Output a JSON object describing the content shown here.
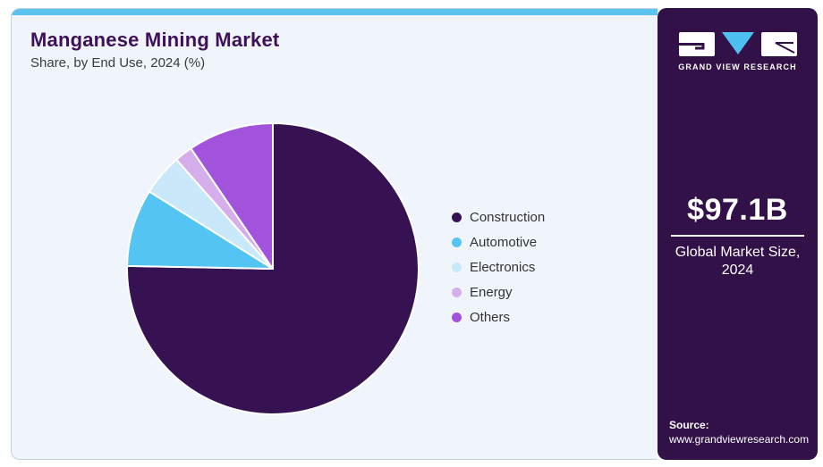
{
  "header": {
    "title": "Manganese Mining Market",
    "subtitle": "Share, by End Use, 2024 (%)"
  },
  "chart_data": {
    "type": "pie",
    "title": "Manganese Mining Market",
    "subtitle": "Share, by End Use, 2024 (%)",
    "unit": "%",
    "start_angle_deg": 0,
    "direction": "clockwise",
    "legend_position": "right",
    "slices": [
      {
        "label": "Construction",
        "value": 75.3,
        "color": "#371253"
      },
      {
        "label": "Automotive",
        "value": 8.6,
        "color": "#54C4F2"
      },
      {
        "label": "Electronics",
        "value": 4.6,
        "color": "#C9E8FA"
      },
      {
        "label": "Energy",
        "value": 2.0,
        "color": "#D7AEEC"
      },
      {
        "label": "Others",
        "value": 9.5,
        "color": "#A253DC"
      }
    ]
  },
  "sidebar": {
    "brand": "GRAND VIEW RESEARCH",
    "logo_triangle_color": "#4EC0F0",
    "market_size_value": "$97.1B",
    "market_size_label_line1": "Global Market Size,",
    "market_size_label_line2": "2024",
    "source_label": "Source:",
    "source_url": "www.grandviewresearch.com"
  },
  "theme": {
    "top_bar_color": "#5BC3F0",
    "panel_bg": "#EFF5FA",
    "card_border": "#CBD1D8",
    "sidebar_bg": "#321148",
    "title_color": "#3F1059",
    "subtitle_color": "#3C3C3C",
    "legend_text_color": "#333333",
    "slice_stroke": "#FFFFFF"
  }
}
